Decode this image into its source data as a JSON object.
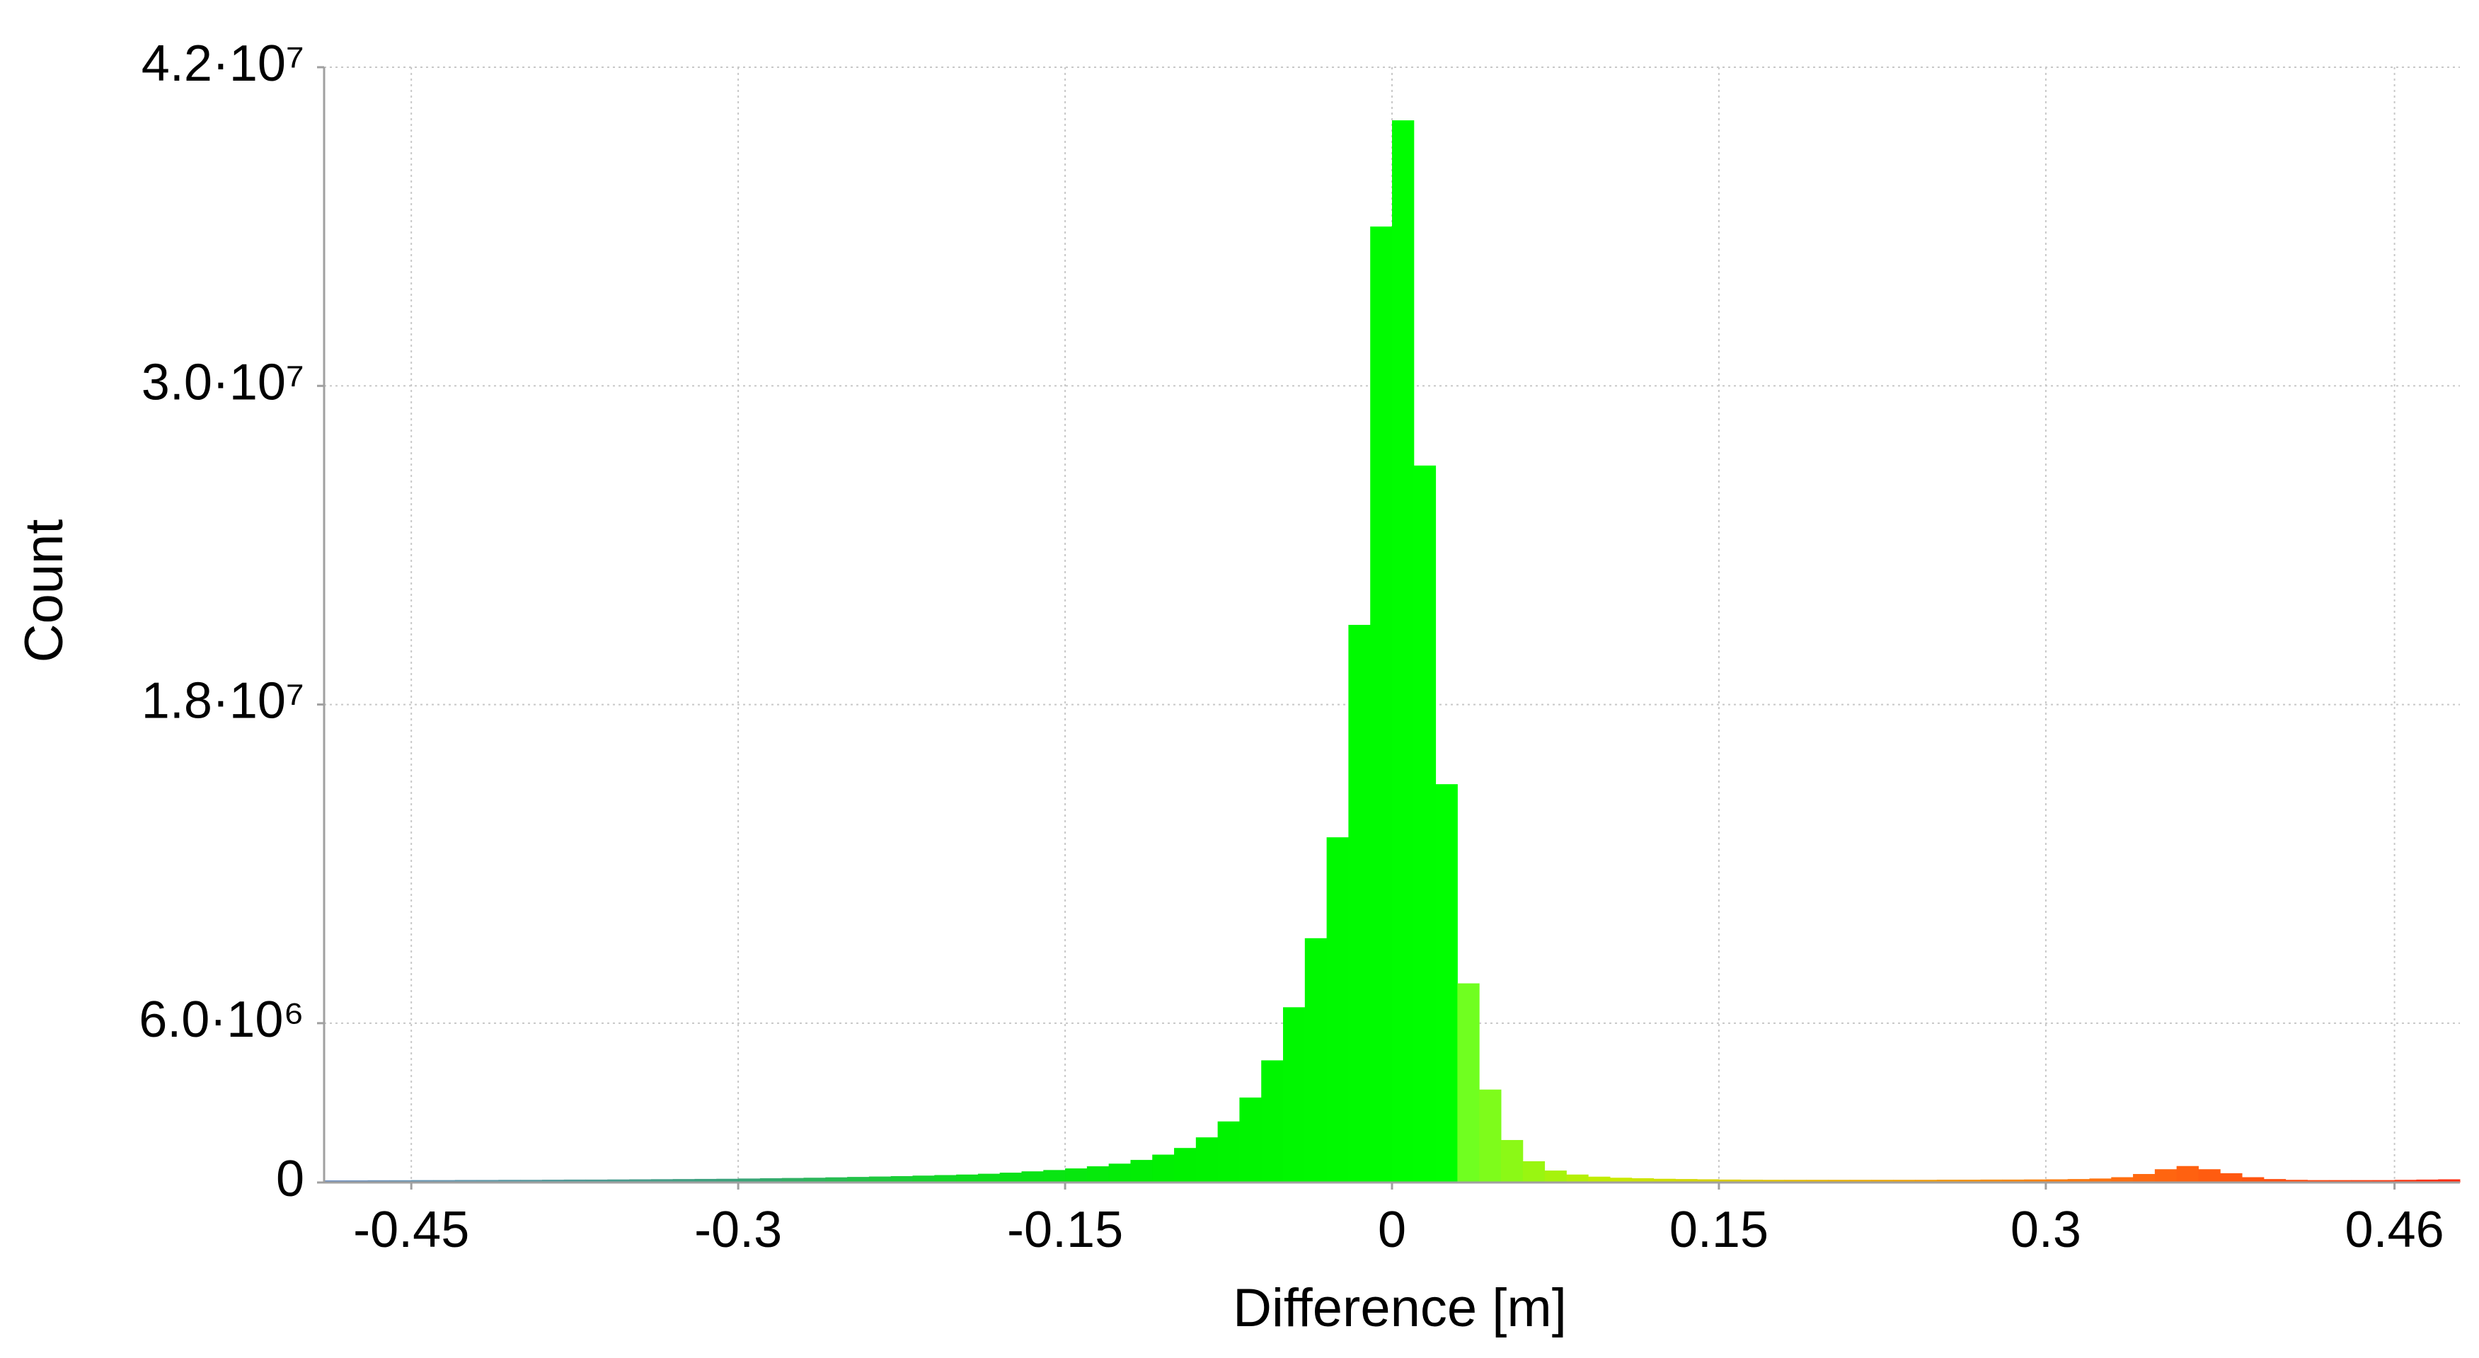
{
  "chart_data": {
    "type": "histogram",
    "x_label": "Difference [m]",
    "y_label": "Count",
    "bins": [
      -0.49,
      -0.48,
      -0.47,
      -0.46,
      -0.45,
      -0.44,
      -0.43,
      -0.42,
      -0.41,
      -0.4,
      -0.39,
      -0.38,
      -0.37,
      -0.36,
      -0.35,
      -0.34,
      -0.33,
      -0.32,
      -0.31,
      -0.3,
      -0.29,
      -0.28,
      -0.27,
      -0.26,
      -0.25,
      -0.24,
      -0.23,
      -0.22,
      -0.21,
      -0.2,
      -0.19,
      -0.18,
      -0.17,
      -0.16,
      -0.15,
      -0.14,
      -0.13,
      -0.12,
      -0.11,
      -0.1,
      -0.09,
      -0.08,
      -0.07,
      -0.06,
      -0.05,
      -0.04,
      -0.03,
      -0.02,
      -0.01,
      0,
      0.01,
      0.02,
      0.03,
      0.04,
      0.05,
      0.06,
      0.07,
      0.08,
      0.09,
      0.1,
      0.11,
      0.12,
      0.13,
      0.14,
      0.15,
      0.16,
      0.17,
      0.18,
      0.19,
      0.2,
      0.21,
      0.22,
      0.23,
      0.24,
      0.25,
      0.26,
      0.27,
      0.28,
      0.29,
      0.3,
      0.31,
      0.32,
      0.33,
      0.34,
      0.35,
      0.36,
      0.37,
      0.38,
      0.39,
      0.4,
      0.41,
      0.42,
      0.43,
      0.44,
      0.45,
      0.46,
      0.47,
      0.48,
      0.49
    ],
    "counts": [
      80000,
      80000,
      85000,
      85000,
      90000,
      90000,
      95000,
      95000,
      100000,
      100000,
      105000,
      110000,
      110000,
      115000,
      120000,
      125000,
      130000,
      135000,
      140000,
      150000,
      160000,
      170000,
      180000,
      195000,
      210000,
      225000,
      240000,
      260000,
      280000,
      300000,
      330000,
      370000,
      420000,
      470000,
      530000,
      610000,
      710000,
      850000,
      1050000,
      1300000,
      1700000,
      2300000,
      3200000,
      4600000,
      6600000,
      9200000,
      13000000,
      21000000,
      36000000,
      40000000,
      27000000,
      15000000,
      7500000,
      3500000,
      1600000,
      800000,
      450000,
      300000,
      220000,
      180000,
      160000,
      140000,
      130000,
      120000,
      110000,
      105000,
      100000,
      100000,
      100000,
      100000,
      100000,
      100000,
      100000,
      100000,
      105000,
      105000,
      110000,
      110000,
      115000,
      120000,
      130000,
      150000,
      200000,
      320000,
      500000,
      620000,
      500000,
      350000,
      200000,
      130000,
      100000,
      90000,
      90000,
      90000,
      90000,
      100000,
      110000,
      120000
    ],
    "colormap": [
      {
        "at": -0.49,
        "color": "#6f8fc4"
      },
      {
        "at": -0.3,
        "color": "#3aa27a"
      },
      {
        "at": -0.2,
        "color": "#10dc20"
      },
      {
        "at": -0.1,
        "color": "#00f000"
      },
      {
        "at": 0.025,
        "color": "#00ff00"
      },
      {
        "at": 0.035,
        "color": "#70ff20"
      },
      {
        "at": 0.1,
        "color": "#c8ec00"
      },
      {
        "at": 0.2,
        "color": "#e8b400"
      },
      {
        "at": 0.33,
        "color": "#ff7010"
      },
      {
        "at": 0.49,
        "color": "#ff2a10"
      }
    ],
    "xlim": [
      -0.49,
      0.49
    ],
    "ylim": [
      0,
      42000000
    ],
    "xticks": [
      -0.45,
      -0.3,
      -0.15,
      0,
      0.15,
      0.3,
      0.46
    ],
    "yticks": [
      0,
      {
        "value": 6000000,
        "label": "6.0·10⁶"
      },
      {
        "value": 18000000,
        "label": "1.8·10⁷"
      },
      {
        "value": 30000000,
        "label": "3.0·10⁷"
      },
      {
        "value": 42000000,
        "label": "4.2·10⁷"
      }
    ],
    "grid": true
  }
}
